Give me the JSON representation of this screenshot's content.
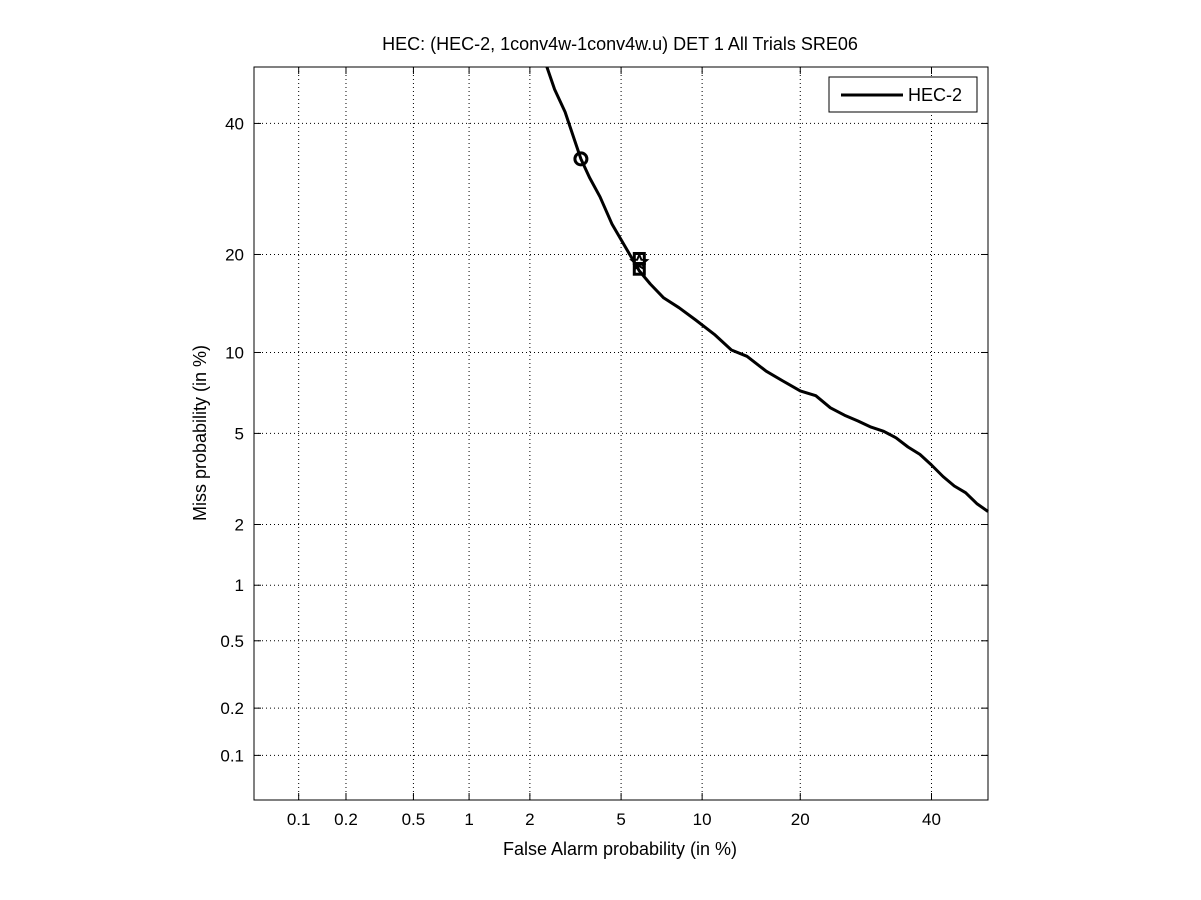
{
  "chart_data": {
    "type": "line",
    "title": "HEC: (HEC-2, 1conv4w-1conv4w.u) DET 1 All Trials SRE06",
    "xlabel": "False Alarm probability (in %)",
    "ylabel": "Miss probability (in %)",
    "x_scale": "probit",
    "y_scale": "probit",
    "xlim": [
      0.05,
      50
    ],
    "ylim": [
      0.05,
      50
    ],
    "x_ticks": [
      0.1,
      0.2,
      0.5,
      1,
      2,
      5,
      10,
      20,
      40
    ],
    "x_tick_labels": [
      "0.1",
      "0.2",
      "0.5",
      "1",
      "2",
      "5",
      "10",
      "20",
      "40"
    ],
    "y_ticks": [
      0.1,
      0.2,
      0.5,
      1,
      2,
      5,
      10,
      20,
      40
    ],
    "y_tick_labels": [
      "0.1",
      "0.2",
      "0.5",
      "1",
      "2",
      "5",
      "10",
      "20",
      "40"
    ],
    "grid": true,
    "legend_position": "top-right",
    "colors": {
      "line": "#000000",
      "grid": "#000000",
      "background": "#ffffff"
    },
    "series": [
      {
        "name": "HEC-2",
        "x": [
          2.4,
          2.6,
          2.9,
          3.2,
          3.4,
          3.7,
          4.1,
          4.6,
          5.3,
          5.9,
          6.5,
          7.3,
          8.3,
          9.5,
          11,
          12.5,
          14,
          16,
          18,
          20,
          22,
          24,
          26,
          28,
          30,
          32,
          34,
          36,
          38,
          40,
          42,
          44,
          46,
          48,
          50
        ],
        "y": [
          50,
          46,
          42,
          37,
          34,
          31,
          28,
          24,
          20.5,
          18,
          16.5,
          15,
          14,
          12.8,
          11.5,
          10.2,
          9.7,
          8.6,
          7.9,
          7.3,
          7.0,
          6.3,
          5.9,
          5.6,
          5.3,
          5.1,
          4.8,
          4.4,
          4.1,
          3.7,
          3.3,
          3.0,
          2.8,
          2.5,
          2.3
        ]
      }
    ],
    "markers": [
      {
        "shape": "circle",
        "x": 3.4,
        "y": 34
      },
      {
        "shape": "square",
        "x": 5.9,
        "y": 19.5
      },
      {
        "shape": "square",
        "x": 5.9,
        "y": 18.2
      },
      {
        "shape": "star",
        "x": 5.9,
        "y": 19.0
      }
    ]
  }
}
